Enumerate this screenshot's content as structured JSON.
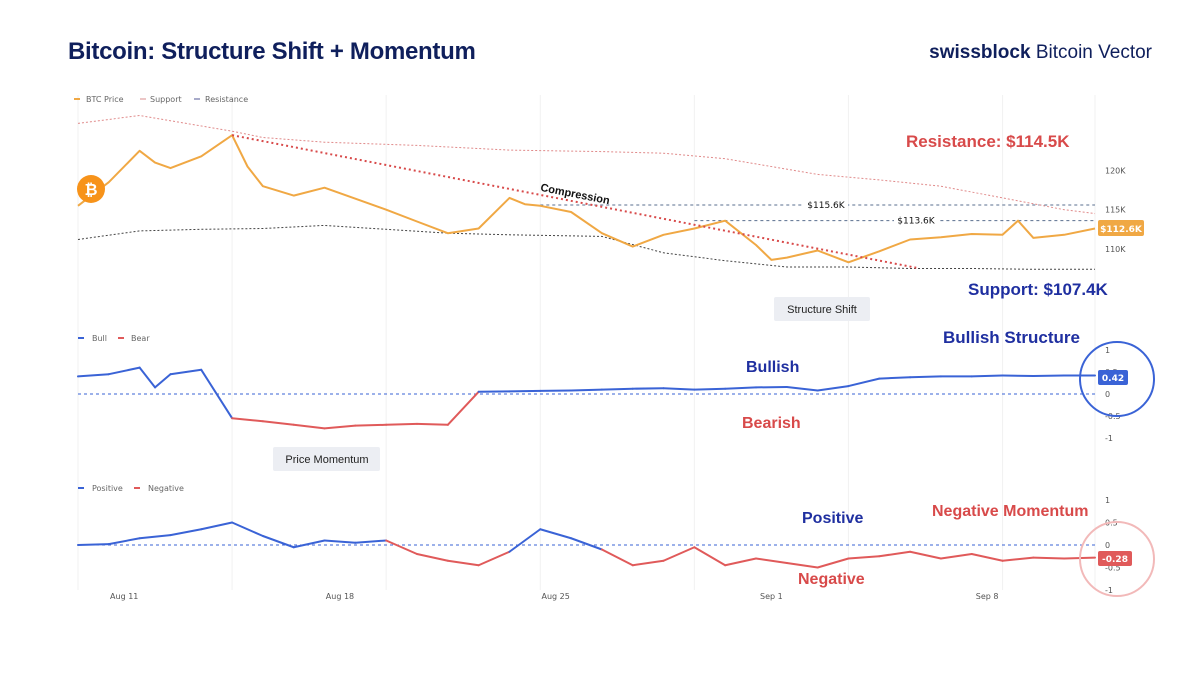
{
  "header": {
    "title": "Bitcoin: Structure Shift + Momentum",
    "brand_bold": "swissblock",
    "brand_rest": " Bitcoin Vector"
  },
  "colors": {
    "price": "#f0a844",
    "resistance": "#e08a8a",
    "support": "#444444",
    "bull": "#3a63d6",
    "bear": "#e05a5a",
    "navy": "#1f2fa0",
    "red": "#d84a4a"
  },
  "icons": {
    "btc": "bitcoin-icon"
  },
  "chart_data": [
    {
      "type": "line",
      "legend": [
        "BTC Price",
        "Support",
        "Resistance"
      ],
      "x_ticks": [
        "Aug 11",
        "Aug 18",
        "Aug 25",
        "Sep 1",
        "Sep 8"
      ],
      "y_ticks": [
        "120K",
        "115K",
        "110K"
      ],
      "ylim": [
        104,
        130
      ],
      "series": [
        {
          "name": "BTC Price",
          "x": [
            0,
            1,
            2,
            2.5,
            3,
            4,
            5,
            5.5,
            6,
            7,
            8,
            9,
            10,
            11,
            12,
            13,
            14,
            14.5,
            15,
            16,
            17,
            18,
            19,
            20,
            21,
            22,
            22.5,
            23,
            24,
            25,
            26,
            27,
            28,
            29,
            30,
            30.5,
            31,
            32,
            33
          ],
          "y": [
            115.5,
            118.5,
            122.5,
            121,
            120.3,
            121.8,
            124.5,
            120.5,
            118,
            116.8,
            117.8,
            116.4,
            115,
            113.5,
            112,
            112.6,
            116.5,
            115.7,
            115.5,
            114.7,
            112,
            110.3,
            111.8,
            112.6,
            113.6,
            110.5,
            108.6,
            108.9,
            109.8,
            108.3,
            109.7,
            111.2,
            111.5,
            111.9,
            111.8,
            113.6,
            111.4,
            111.8,
            112.6
          ]
        },
        {
          "name": "Resistance",
          "x": [
            0,
            2,
            5,
            6,
            8,
            11,
            14,
            17,
            19,
            21,
            24,
            26,
            28,
            30,
            32,
            33
          ],
          "y": [
            126,
            127,
            125,
            124.2,
            123.6,
            123.2,
            122.6,
            122.4,
            122.2,
            121.5,
            119.5,
            118.8,
            118,
            116.5,
            115,
            114.5
          ]
        },
        {
          "name": "Support",
          "x": [
            0,
            2,
            4,
            6,
            8,
            10,
            12,
            14,
            17,
            19,
            21,
            23,
            25,
            27,
            29,
            31,
            33
          ],
          "y": [
            111.2,
            112.3,
            112.5,
            112.6,
            113,
            112.5,
            112,
            111.8,
            111.6,
            109.5,
            108.5,
            107.7,
            107.7,
            107.5,
            107.5,
            107.4,
            107.4
          ]
        }
      ],
      "levels": [
        {
          "label": "$115.6K",
          "value": 115.6
        },
        {
          "label": "$113.6K",
          "value": 113.6
        }
      ],
      "last_value_label": "$112.6K",
      "annotations": {
        "compression": "Compression",
        "resistance": "Resistance: $114.5K",
        "support": "Support: $107.4K",
        "structure_shift": "Structure Shift"
      }
    },
    {
      "type": "line",
      "legend": [
        "Bull",
        "Bear"
      ],
      "y_ticks": [
        "1",
        "0.5",
        "0",
        "-0.5",
        "-1"
      ],
      "ylim": [
        -1,
        1
      ],
      "series": [
        {
          "name": "Bull / Bear",
          "x": [
            0,
            1,
            2,
            2.5,
            3,
            3.5,
            4,
            5,
            6,
            7,
            8,
            9,
            10,
            11,
            12,
            13,
            14,
            15,
            16,
            17,
            18,
            19,
            20,
            21,
            22,
            23,
            24,
            25,
            26,
            27,
            28,
            29,
            30,
            31,
            32,
            33
          ],
          "y": [
            0.4,
            0.45,
            0.6,
            0.15,
            0.45,
            0.5,
            0.55,
            -0.55,
            -0.62,
            -0.7,
            -0.78,
            -0.72,
            -0.7,
            -0.68,
            -0.7,
            0.05,
            0.06,
            0.07,
            0.08,
            0.1,
            0.12,
            0.13,
            0.1,
            0.12,
            0.15,
            0.16,
            0.08,
            0.18,
            0.35,
            0.38,
            0.4,
            0.4,
            0.42,
            0.41,
            0.42,
            0.42
          ]
        }
      ],
      "last_value_label": "0.42",
      "annotations": {
        "bullish": "Bullish",
        "bearish": "Bearish",
        "bullish_structure": "Bullish Structure",
        "price_momentum": "Price Momentum"
      }
    },
    {
      "type": "line",
      "legend": [
        "Positive",
        "Negative"
      ],
      "y_ticks": [
        "1",
        "0.5",
        "0",
        "-0.5",
        "-1"
      ],
      "ylim": [
        -1,
        1
      ],
      "series": [
        {
          "name": "Positive / Negative",
          "x": [
            0,
            1,
            2,
            3,
            4,
            5,
            6,
            7,
            8,
            9,
            10,
            11,
            12,
            13,
            14,
            15,
            16,
            17,
            18,
            19,
            20,
            21,
            22,
            23,
            24,
            25,
            26,
            27,
            28,
            29,
            30,
            31,
            32,
            33
          ],
          "y": [
            0,
            0.02,
            0.15,
            0.22,
            0.35,
            0.5,
            0.2,
            -0.05,
            0.1,
            0.05,
            0.1,
            -0.2,
            -0.35,
            -0.45,
            -0.15,
            0.35,
            0.15,
            -0.1,
            -0.45,
            -0.35,
            -0.05,
            -0.45,
            -0.3,
            -0.4,
            -0.5,
            -0.3,
            -0.25,
            -0.15,
            -0.3,
            -0.2,
            -0.35,
            -0.28,
            -0.3,
            -0.28
          ]
        }
      ],
      "last_value_label": "-0.28",
      "annotations": {
        "positive": "Positive",
        "negative": "Negative",
        "negative_momentum": "Negative Momentum"
      }
    }
  ]
}
